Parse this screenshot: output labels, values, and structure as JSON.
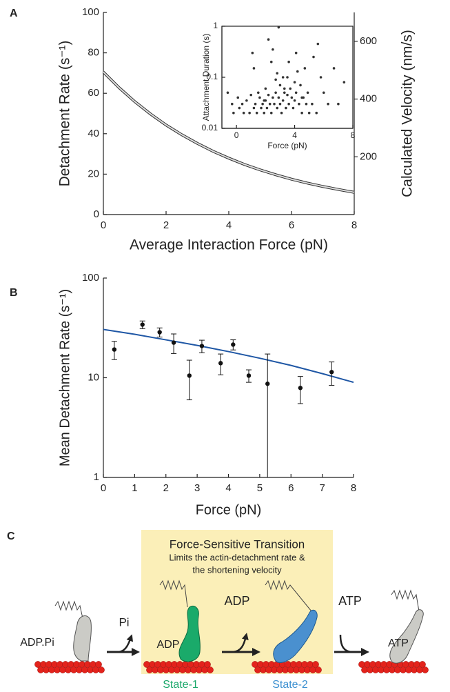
{
  "panel_labels": [
    "A",
    "B",
    "C"
  ],
  "chart_data": [
    {
      "type": "line",
      "x": [
        0,
        0.5,
        1,
        1.5,
        2,
        2.5,
        3,
        3.5,
        4,
        4.5,
        5,
        5.5,
        6,
        6.5,
        7,
        7.5,
        8
      ],
      "values": [
        70.5,
        62.8,
        55.9,
        49.8,
        44.3,
        39.5,
        35.2,
        31.3,
        27.9,
        24.8,
        22.1,
        19.7,
        17.5,
        15.6,
        13.9,
        12.4,
        11.0
      ],
      "color": "#333333",
      "xlim": [
        0,
        8
      ],
      "xticks": [
        0,
        2,
        4,
        6,
        8
      ],
      "ylim": [
        0,
        100
      ],
      "yticks": [
        0,
        20,
        40,
        60,
        80,
        100
      ],
      "y2lim": [
        0,
        700
      ],
      "y2ticks": [
        200,
        400,
        600
      ],
      "xlabel": "Average Interaction Force (pN)",
      "ylabel": "Detachment Rate (s⁻¹)",
      "y2label": "Calculated Velocity (nm/s)"
    },
    {
      "type": "scatter",
      "x": [
        -0.6,
        -0.3,
        -0.2,
        0.1,
        0.2,
        0.4,
        0.5,
        0.7,
        0.9,
        1.0,
        1.1,
        1.2,
        1.3,
        1.4,
        1.5,
        1.6,
        1.7,
        1.8,
        1.9,
        2.0,
        2.0,
        2.1,
        2.2,
        2.3,
        2.4,
        2.5,
        2.5,
        2.6,
        2.7,
        2.8,
        2.9,
        3.0,
        3.0,
        3.1,
        3.2,
        3.3,
        3.4,
        3.5,
        3.5,
        3.6,
        3.7,
        3.8,
        3.9,
        4.0,
        4.0,
        4.1,
        4.2,
        4.3,
        4.4,
        4.5,
        4.6,
        4.7,
        4.8,
        4.9,
        5.0,
        5.2,
        5.3,
        5.5,
        5.6,
        5.8,
        6.0,
        6.3,
        6.7,
        7.0,
        7.4,
        1.2,
        2.4,
        2.8,
        3.2,
        3.6,
        4.1,
        1.9,
        2.7,
        3.3,
        4.5,
        2.9,
        2.2
      ],
      "values": [
        0.05,
        0.03,
        0.02,
        0.04,
        0.025,
        0.03,
        0.02,
        0.035,
        0.02,
        0.045,
        0.3,
        0.025,
        0.03,
        0.02,
        0.05,
        0.04,
        0.025,
        0.03,
        0.02,
        0.035,
        0.06,
        0.025,
        0.045,
        0.03,
        0.02,
        0.04,
        0.35,
        0.03,
        0.05,
        0.025,
        0.04,
        0.03,
        0.07,
        0.02,
        0.035,
        0.05,
        0.025,
        0.045,
        0.1,
        0.03,
        0.06,
        0.04,
        0.025,
        0.035,
        0.08,
        0.05,
        0.13,
        0.03,
        0.07,
        0.02,
        0.04,
        0.15,
        0.03,
        0.05,
        0.02,
        0.03,
        0.25,
        0.02,
        0.45,
        0.1,
        0.05,
        0.03,
        0.15,
        0.03,
        0.08,
        0.15,
        0.2,
        0.12,
        0.1,
        0.2,
        0.3,
        0.035,
        0.09,
        0.06,
        0.04,
        0.95,
        0.55
      ],
      "color": "#333333",
      "log_y": true,
      "xlim": [
        -1,
        8
      ],
      "xticks": [
        0,
        4,
        8
      ],
      "ylim": [
        0.01,
        1
      ],
      "yticks": [
        0.01,
        0.1,
        1
      ],
      "xlabel": "Force (pN)",
      "ylabel": "Attachment Duration (s)"
    },
    {
      "type": "scatter",
      "x": [
        0.35,
        1.25,
        1.8,
        2.25,
        2.75,
        3.15,
        3.75,
        4.15,
        4.65,
        5.25,
        6.3,
        7.3
      ],
      "values": [
        19.2,
        34.1,
        28.6,
        22.5,
        10.5,
        20.8,
        14.0,
        21.5,
        10.5,
        8.7,
        7.9,
        11.4
      ],
      "errors": [
        4,
        3,
        3,
        5,
        4.5,
        3,
        3.3,
        2.5,
        1.5,
        8.6,
        2.4,
        3
      ],
      "color": "#111111",
      "log_y": true,
      "xlim": [
        0,
        8
      ],
      "xticks": [
        0,
        1,
        2,
        3,
        4,
        5,
        6,
        7,
        8
      ],
      "ylim": [
        1,
        100
      ],
      "yticks": [
        1,
        10,
        100
      ],
      "fit": {
        "x": [
          0,
          1,
          2,
          3,
          4,
          5,
          6,
          7,
          8
        ],
        "values": [
          30.5,
          27.3,
          24.0,
          21.1,
          18.3,
          15.7,
          13.3,
          11.0,
          9.0
        ],
        "color": "#1f57a5"
      },
      "xlabel": "Force (pN)",
      "ylabel": "Mean Detachment Rate (s⁻¹)"
    }
  ],
  "diagram": {
    "title": "Force-Sensitive Transition",
    "subtitle": [
      "Limits the actin-detachment rate &",
      "the shortening velocity"
    ],
    "released": [
      "Pi",
      "ADP",
      "ATP"
    ],
    "bound": [
      "ADP.Pi",
      "ADP",
      "ATP"
    ],
    "states": [
      "State-1",
      "State-2"
    ]
  }
}
